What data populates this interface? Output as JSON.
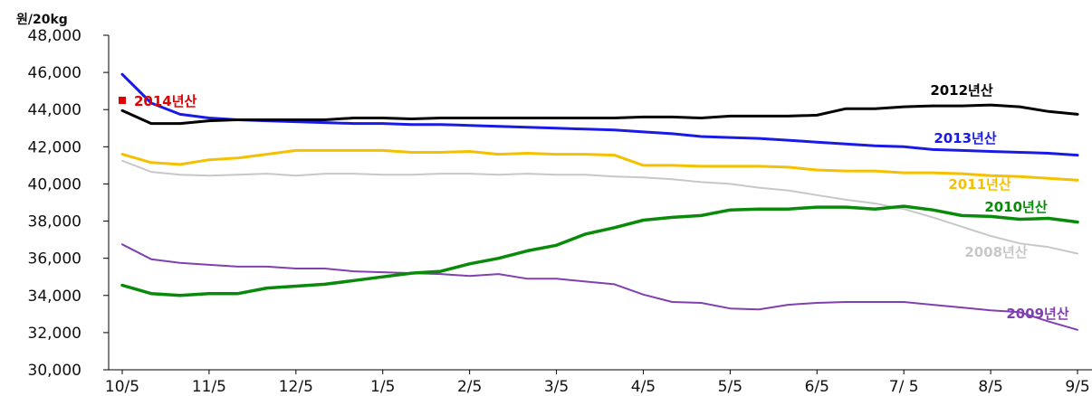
{
  "chart_data": {
    "type": "line",
    "title": "",
    "unit_label": "원/20kg",
    "ylim": [
      30000,
      48000
    ],
    "y_ticks": [
      "48,000",
      "46,000",
      "44,000",
      "42,000",
      "40,000",
      "38,000",
      "36,000",
      "34,000",
      "32,000",
      "30,000"
    ],
    "y_tick_values": [
      48000,
      46000,
      44000,
      42000,
      40000,
      38000,
      36000,
      34000,
      32000,
      30000
    ],
    "x_ticks": [
      "10/5",
      "11/5",
      "12/5",
      "1/5",
      "2/5",
      "3/5",
      "4/5",
      "5/5",
      "6/5",
      "7/ 5",
      "8/5",
      "9/5"
    ],
    "grid": false,
    "series": [
      {
        "name": "2012년산",
        "color": "#000000",
        "width": 3,
        "values": [
          43950,
          43250,
          43250,
          43400,
          43450,
          43450,
          43450,
          43450,
          43550,
          43550,
          43500,
          43550,
          43550,
          43550,
          43550,
          43550,
          43550,
          43550,
          43600,
          43600,
          43550,
          43650,
          43650,
          43650,
          43700,
          44050,
          44050,
          44150,
          44200,
          44200,
          44250,
          44150,
          43900,
          43750
        ]
      },
      {
        "name": "2013년산",
        "color": "#1a1ae6",
        "width": 3,
        "values": [
          45900,
          44350,
          43750,
          43550,
          43450,
          43400,
          43350,
          43300,
          43250,
          43250,
          43200,
          43200,
          43150,
          43100,
          43050,
          43000,
          42950,
          42900,
          42800,
          42700,
          42550,
          42500,
          42450,
          42350,
          42250,
          42150,
          42050,
          42000,
          41850,
          41800,
          41750,
          41700,
          41650,
          41550
        ]
      },
      {
        "name": "2011년산",
        "color": "#f5c000",
        "width": 3,
        "values": [
          41600,
          41150,
          41050,
          41300,
          41400,
          41600,
          41800,
          41800,
          41800,
          41800,
          41700,
          41700,
          41750,
          41600,
          41650,
          41600,
          41600,
          41550,
          41000,
          41000,
          40950,
          40950,
          40950,
          40900,
          40750,
          40700,
          40700,
          40600,
          40600,
          40550,
          40450,
          40400,
          40300,
          40200
        ]
      },
      {
        "name": "2010년산",
        "color": "#0a8a0a",
        "width": 3.5,
        "values": [
          34550,
          34100,
          34000,
          34100,
          34100,
          34400,
          34500,
          34600,
          34800,
          35000,
          35200,
          35300,
          35700,
          36000,
          36400,
          36700,
          37300,
          37650,
          38050,
          38200,
          38300,
          38600,
          38650,
          38650,
          38750,
          38750,
          38650,
          38800,
          38600,
          38300,
          38250,
          38100,
          38150,
          37950
        ]
      },
      {
        "name": "2008년산",
        "color": "#c8c8c8",
        "width": 2,
        "values": [
          41250,
          40650,
          40500,
          40450,
          40500,
          40550,
          40450,
          40550,
          40550,
          40500,
          40500,
          40550,
          40550,
          40500,
          40550,
          40500,
          40500,
          40400,
          40350,
          40250,
          40100,
          40000,
          39800,
          39650,
          39400,
          39150,
          38950,
          38650,
          38200,
          37700,
          37200,
          36800,
          36600,
          36250
        ]
      },
      {
        "name": "2009년산",
        "color": "#8040b0",
        "width": 2,
        "values": [
          36750,
          35950,
          35750,
          35650,
          35550,
          35550,
          35450,
          35450,
          35300,
          35250,
          35200,
          35150,
          35050,
          35150,
          34900,
          34900,
          34750,
          34600,
          34050,
          33650,
          33600,
          33300,
          33250,
          33500,
          33600,
          33650,
          33650,
          33650,
          33500,
          33350,
          33200,
          33100,
          32600,
          32150
        ]
      }
    ],
    "points": [
      {
        "name": "2014년산",
        "color": "#e00000",
        "x_index": 0,
        "value": 44500
      }
    ]
  }
}
